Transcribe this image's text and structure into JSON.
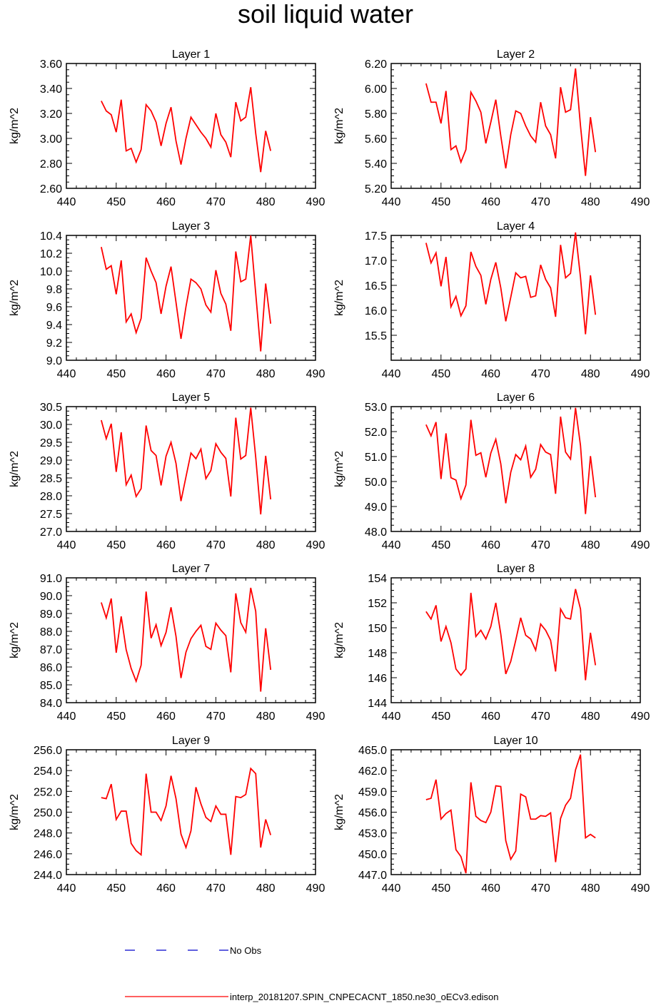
{
  "title": "soil liquid water",
  "colors": {
    "series": "#ff0000",
    "obs": "#0000cc",
    "axis": "#000000"
  },
  "legend": {
    "obs_label": "No Obs",
    "model_label": "interp_20181207.SPIN_CNPECACNT_1850.ne30_oECv3.edison"
  },
  "chart_data": [
    {
      "type": "line",
      "title": "Layer 1",
      "ylabel": "kg/m^2",
      "xlim": [
        440,
        490
      ],
      "ylim": [
        2.6,
        3.6
      ],
      "xticks": [
        "440",
        "450",
        "460",
        "470",
        "480",
        "490"
      ],
      "yticks": [
        "2.60",
        "2.80",
        "3.00",
        "3.20",
        "3.40",
        "3.60"
      ],
      "x": [
        447,
        448,
        449,
        450,
        451,
        452,
        453,
        454,
        455,
        456,
        457,
        458,
        459,
        460,
        461,
        462,
        463,
        464,
        465,
        466,
        467,
        468,
        469,
        470,
        471,
        472,
        473,
        474,
        475,
        476,
        477,
        478,
        479,
        480,
        481
      ],
      "series": [
        {
          "values": [
            3.3,
            3.22,
            3.19,
            3.05,
            3.31,
            2.9,
            2.92,
            2.81,
            2.91,
            3.27,
            3.22,
            3.13,
            2.94,
            3.12,
            3.25,
            2.98,
            2.79,
            3.0,
            3.17,
            3.11,
            3.05,
            3.0,
            2.93,
            3.2,
            3.03,
            2.97,
            2.85,
            3.29,
            3.14,
            3.17,
            3.41,
            3.04,
            2.73,
            3.06,
            2.9
          ]
        }
      ]
    },
    {
      "type": "line",
      "title": "Layer 2",
      "ylabel": "kg/m^2",
      "xlim": [
        440,
        490
      ],
      "ylim": [
        5.2,
        6.2
      ],
      "xticks": [
        "440",
        "450",
        "460",
        "470",
        "480",
        "490"
      ],
      "yticks": [
        "5.20",
        "5.40",
        "5.60",
        "5.80",
        "6.00",
        "6.20"
      ],
      "x": [
        447,
        448,
        449,
        450,
        451,
        452,
        453,
        454,
        455,
        456,
        457,
        458,
        459,
        460,
        461,
        462,
        463,
        464,
        465,
        466,
        467,
        468,
        469,
        470,
        471,
        472,
        473,
        474,
        475,
        476,
        477,
        478,
        479,
        480,
        481
      ],
      "series": [
        {
          "values": [
            6.04,
            5.89,
            5.89,
            5.72,
            5.98,
            5.51,
            5.54,
            5.41,
            5.51,
            5.97,
            5.9,
            5.81,
            5.56,
            5.73,
            5.91,
            5.62,
            5.36,
            5.63,
            5.82,
            5.8,
            5.7,
            5.62,
            5.57,
            5.89,
            5.7,
            5.63,
            5.44,
            6.01,
            5.81,
            5.83,
            6.16,
            5.7,
            5.3,
            5.77,
            5.49
          ]
        }
      ]
    },
    {
      "type": "line",
      "title": "Layer 3",
      "ylabel": "kg/m^2",
      "xlim": [
        440,
        490
      ],
      "ylim": [
        9.0,
        10.4
      ],
      "xticks": [
        "440",
        "450",
        "460",
        "470",
        "480",
        "490"
      ],
      "yticks": [
        "9.0",
        "9.2",
        "9.4",
        "9.6",
        "9.8",
        "10.0",
        "10.2",
        "10.4"
      ],
      "x": [
        447,
        448,
        449,
        450,
        451,
        452,
        453,
        454,
        455,
        456,
        457,
        458,
        459,
        460,
        461,
        462,
        463,
        464,
        465,
        466,
        467,
        468,
        469,
        470,
        471,
        472,
        473,
        474,
        475,
        476,
        477,
        478,
        479,
        480,
        481
      ],
      "series": [
        {
          "values": [
            10.27,
            10.02,
            10.06,
            9.74,
            10.12,
            9.43,
            9.52,
            9.31,
            9.47,
            10.15,
            10.0,
            9.87,
            9.52,
            9.83,
            10.05,
            9.65,
            9.24,
            9.6,
            9.91,
            9.87,
            9.8,
            9.62,
            9.54,
            10.01,
            9.75,
            9.63,
            9.33,
            10.22,
            9.88,
            9.91,
            10.4,
            9.75,
            9.1,
            9.86,
            9.41
          ]
        }
      ]
    },
    {
      "type": "line",
      "title": "Layer 4",
      "ylabel": "kg/m^2",
      "xlim": [
        440,
        490
      ],
      "ylim": [
        15.0,
        17.5
      ],
      "xticks": [
        "440",
        "450",
        "460",
        "470",
        "480",
        "490"
      ],
      "yticks": [
        "",
        "15.5",
        "16.0",
        "16.5",
        "17.0",
        "17.5"
      ],
      "x": [
        447,
        448,
        449,
        450,
        451,
        452,
        453,
        454,
        455,
        456,
        457,
        458,
        459,
        460,
        461,
        462,
        463,
        464,
        465,
        466,
        467,
        468,
        469,
        470,
        471,
        472,
        473,
        474,
        475,
        476,
        477,
        478,
        479,
        480,
        481
      ],
      "series": [
        {
          "values": [
            17.35,
            16.95,
            17.15,
            16.48,
            17.07,
            16.07,
            16.28,
            15.89,
            16.09,
            17.17,
            16.88,
            16.7,
            16.12,
            16.62,
            16.96,
            16.45,
            15.78,
            16.26,
            16.75,
            16.65,
            16.68,
            16.26,
            16.29,
            16.91,
            16.62,
            16.45,
            15.87,
            17.31,
            16.65,
            16.74,
            17.56,
            16.66,
            15.52,
            16.7,
            15.91
          ]
        }
      ]
    },
    {
      "type": "line",
      "title": "Layer 5",
      "ylabel": "kg/m^2",
      "xlim": [
        440,
        490
      ],
      "ylim": [
        27.0,
        30.5
      ],
      "xticks": [
        "440",
        "450",
        "460",
        "470",
        "480",
        "490"
      ],
      "yticks": [
        "27.0",
        "27.5",
        "28.0",
        "28.5",
        "29.0",
        "29.5",
        "30.0",
        "30.5"
      ],
      "x": [
        447,
        448,
        449,
        450,
        451,
        452,
        453,
        454,
        455,
        456,
        457,
        458,
        459,
        460,
        461,
        462,
        463,
        464,
        465,
        466,
        467,
        468,
        469,
        470,
        471,
        472,
        473,
        474,
        475,
        476,
        477,
        478,
        479,
        480,
        481
      ],
      "series": [
        {
          "values": [
            30.12,
            29.6,
            30.02,
            28.67,
            29.78,
            28.31,
            28.58,
            27.98,
            28.2,
            29.97,
            29.27,
            29.13,
            28.29,
            29.11,
            29.5,
            28.91,
            27.85,
            28.53,
            29.2,
            29.04,
            29.31,
            28.48,
            28.71,
            29.46,
            29.22,
            29.05,
            27.98,
            30.19,
            29.03,
            29.13,
            30.47,
            29.08,
            27.48,
            29.12,
            27.9
          ]
        }
      ]
    },
    {
      "type": "line",
      "title": "Layer 6",
      "ylabel": "kg/m^2",
      "xlim": [
        440,
        490
      ],
      "ylim": [
        48.0,
        53.0
      ],
      "xticks": [
        "440",
        "450",
        "460",
        "470",
        "480",
        "490"
      ],
      "yticks": [
        "48.0",
        "49.0",
        "50.0",
        "51.0",
        "52.0",
        "53.0"
      ],
      "x": [
        447,
        448,
        449,
        450,
        451,
        452,
        453,
        454,
        455,
        456,
        457,
        458,
        459,
        460,
        461,
        462,
        463,
        464,
        465,
        466,
        467,
        468,
        469,
        470,
        471,
        472,
        473,
        474,
        475,
        476,
        477,
        478,
        479,
        480,
        481
      ],
      "series": [
        {
          "values": [
            52.28,
            51.83,
            52.38,
            50.1,
            51.93,
            50.15,
            50.06,
            49.31,
            49.86,
            52.47,
            51.05,
            51.15,
            50.17,
            51.14,
            51.69,
            50.71,
            49.13,
            50.37,
            51.08,
            50.87,
            51.42,
            50.17,
            50.49,
            51.48,
            51.18,
            51.08,
            49.51,
            52.6,
            51.18,
            50.9,
            52.95,
            51.44,
            48.7,
            51.02,
            49.37
          ]
        }
      ]
    },
    {
      "type": "line",
      "title": "Layer 7",
      "ylabel": "kg/m^2",
      "xlim": [
        440,
        490
      ],
      "ylim": [
        84.0,
        91.0
      ],
      "xticks": [
        "440",
        "450",
        "460",
        "470",
        "480",
        "490"
      ],
      "yticks": [
        "84.0",
        "85.0",
        "86.0",
        "87.0",
        "88.0",
        "89.0",
        "90.0",
        "91.0"
      ],
      "x": [
        447,
        448,
        449,
        450,
        451,
        452,
        453,
        454,
        455,
        456,
        457,
        458,
        459,
        460,
        461,
        462,
        463,
        464,
        465,
        466,
        467,
        468,
        469,
        470,
        471,
        472,
        473,
        474,
        475,
        476,
        477,
        478,
        479,
        480,
        481
      ],
      "series": [
        {
          "values": [
            89.62,
            88.75,
            89.84,
            86.8,
            88.84,
            86.97,
            85.92,
            85.2,
            86.1,
            90.23,
            87.62,
            88.37,
            87.2,
            87.94,
            89.35,
            87.72,
            85.38,
            86.83,
            87.59,
            88.0,
            88.34,
            87.16,
            86.99,
            88.46,
            88.07,
            87.76,
            85.7,
            90.13,
            88.49,
            87.95,
            90.44,
            89.12,
            84.62,
            88.17,
            85.84
          ]
        }
      ]
    },
    {
      "type": "line",
      "title": "Layer 8",
      "ylabel": "kg/m^2",
      "xlim": [
        440,
        490
      ],
      "ylim": [
        144,
        154
      ],
      "xticks": [
        "440",
        "450",
        "460",
        "470",
        "480",
        "490"
      ],
      "yticks": [
        "144",
        "146",
        "148",
        "150",
        "152",
        "154"
      ],
      "x": [
        447,
        448,
        449,
        450,
        451,
        452,
        453,
        454,
        455,
        456,
        457,
        458,
        459,
        460,
        461,
        462,
        463,
        464,
        465,
        466,
        467,
        468,
        469,
        470,
        471,
        472,
        473,
        474,
        475,
        476,
        477,
        478,
        479,
        480,
        481
      ],
      "series": [
        {
          "values": [
            151.3,
            150.7,
            151.8,
            148.9,
            150.1,
            148.8,
            146.7,
            146.2,
            146.7,
            152.8,
            149.3,
            149.8,
            149.1,
            150.1,
            152.0,
            149.5,
            146.3,
            147.3,
            149.0,
            150.8,
            149.4,
            149.1,
            148.2,
            150.3,
            149.8,
            149.0,
            146.5,
            151.5,
            150.8,
            150.7,
            153.1,
            151.5,
            145.8,
            149.6,
            147.0
          ]
        }
      ]
    },
    {
      "type": "line",
      "title": "Layer 9",
      "ylabel": "kg/m^2",
      "xlim": [
        440,
        490
      ],
      "ylim": [
        244,
        256
      ],
      "xticks": [
        "440",
        "450",
        "460",
        "470",
        "480",
        "490"
      ],
      "yticks": [
        "244.0",
        "246.0",
        "248.0",
        "250.0",
        "252.0",
        "254.0",
        "256.0"
      ],
      "x": [
        447,
        448,
        449,
        450,
        451,
        452,
        453,
        454,
        455,
        456,
        457,
        458,
        459,
        460,
        461,
        462,
        463,
        464,
        465,
        466,
        467,
        468,
        469,
        470,
        471,
        472,
        473,
        474,
        475,
        476,
        477,
        478,
        479,
        480,
        481
      ],
      "series": [
        {
          "values": [
            251.4,
            251.3,
            252.7,
            249.3,
            250.1,
            250.1,
            247.0,
            246.3,
            245.9,
            253.7,
            250.0,
            250.0,
            249.2,
            250.6,
            253.5,
            251.3,
            247.9,
            246.6,
            248.2,
            252.4,
            250.8,
            249.5,
            249.1,
            250.6,
            249.8,
            249.8,
            245.9,
            251.5,
            251.4,
            251.7,
            254.2,
            253.7,
            246.6,
            249.3,
            247.8
          ]
        }
      ]
    },
    {
      "type": "line",
      "title": "Layer 10",
      "ylabel": "kg/m^2",
      "xlim": [
        440,
        490
      ],
      "ylim": [
        447,
        465
      ],
      "xticks": [
        "440",
        "450",
        "460",
        "470",
        "480",
        "490"
      ],
      "yticks": [
        "447.0",
        "450.0",
        "453.0",
        "456.0",
        "459.0",
        "462.0",
        "465.0"
      ],
      "x": [
        447,
        448,
        449,
        450,
        451,
        452,
        453,
        454,
        455,
        456,
        457,
        458,
        459,
        460,
        461,
        462,
        463,
        464,
        465,
        466,
        467,
        468,
        469,
        470,
        471,
        472,
        473,
        474,
        475,
        476,
        477,
        478,
        479,
        480,
        481
      ],
      "series": [
        {
          "values": [
            457.8,
            458.0,
            460.7,
            455.0,
            455.8,
            456.3,
            450.6,
            449.6,
            447.2,
            460.3,
            455.4,
            454.8,
            454.5,
            456.0,
            459.8,
            459.7,
            451.9,
            449.2,
            450.4,
            458.6,
            458.2,
            455.0,
            455.0,
            455.5,
            455.4,
            455.9,
            448.8,
            455.1,
            457.0,
            458.0,
            462.1,
            464.3,
            452.3,
            452.8,
            452.3
          ]
        }
      ]
    }
  ]
}
